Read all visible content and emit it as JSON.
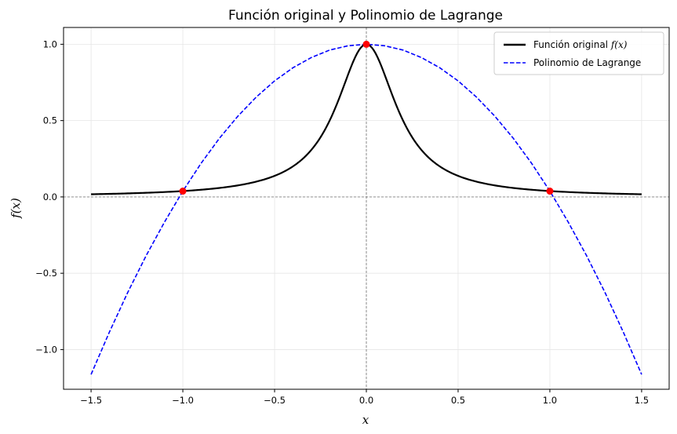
{
  "chart_data": {
    "type": "line",
    "title": "Función original y Polinomio de Lagrange",
    "xlabel": "x",
    "ylabel": "f(x)",
    "xlim": [
      -1.65,
      1.65
    ],
    "ylim": [
      -1.26,
      1.11
    ],
    "xticks": [
      -1.5,
      -1.0,
      -0.5,
      0.0,
      0.5,
      1.0,
      1.5
    ],
    "xtick_labels": [
      "−1.5",
      "−1.0",
      "−0.5",
      "0.0",
      "0.5",
      "1.0",
      "1.5"
    ],
    "yticks": [
      -1.0,
      -0.5,
      0.0,
      0.5,
      1.0
    ],
    "ytick_labels": [
      "−1.0",
      "−0.5",
      "0.0",
      "0.5",
      "1.0"
    ],
    "grid": true,
    "reference_lines": {
      "x": 0,
      "y": 0
    },
    "legend_position": "top-right",
    "series": [
      {
        "name": "Función original f(x)",
        "legend_prefix": "Función original ",
        "legend_math": "f(x)",
        "color": "#000000",
        "style": "solid",
        "x": [
          -1.5,
          -1.4,
          -1.3,
          -1.2,
          -1.1,
          -1.0,
          -0.9,
          -0.8,
          -0.7,
          -0.6,
          -0.5,
          -0.45,
          -0.4,
          -0.35,
          -0.3,
          -0.25,
          -0.2,
          -0.15,
          -0.1,
          -0.05,
          0.0,
          0.05,
          0.1,
          0.15,
          0.2,
          0.25,
          0.3,
          0.35,
          0.4,
          0.45,
          0.5,
          0.6,
          0.7,
          0.8,
          0.9,
          1.0,
          1.1,
          1.2,
          1.3,
          1.4,
          1.5
        ],
        "y": [
          0.017,
          0.02,
          0.023,
          0.027,
          0.032,
          0.038,
          0.047,
          0.059,
          0.075,
          0.1,
          0.138,
          0.165,
          0.2,
          0.246,
          0.308,
          0.39,
          0.5,
          0.64,
          0.8,
          0.941,
          1.0,
          0.941,
          0.8,
          0.64,
          0.5,
          0.39,
          0.308,
          0.246,
          0.2,
          0.165,
          0.138,
          0.1,
          0.075,
          0.059,
          0.047,
          0.038,
          0.032,
          0.027,
          0.023,
          0.02,
          0.017
        ]
      },
      {
        "name": "Polinomio de Lagrange",
        "color": "#0000ff",
        "style": "dashed",
        "x": [
          -1.5,
          -1.4,
          -1.3,
          -1.2,
          -1.1,
          -1.0,
          -0.9,
          -0.8,
          -0.7,
          -0.6,
          -0.5,
          -0.4,
          -0.3,
          -0.2,
          -0.1,
          0.0,
          0.1,
          0.2,
          0.3,
          0.4,
          0.5,
          0.6,
          0.7,
          0.8,
          0.9,
          1.0,
          1.1,
          1.2,
          1.3,
          1.4,
          1.5
        ],
        "y": [
          -1.163,
          -0.885,
          -0.625,
          -0.385,
          -0.165,
          0.038,
          0.221,
          0.385,
          0.529,
          0.654,
          0.76,
          0.846,
          0.913,
          0.962,
          0.99,
          1.0,
          0.99,
          0.962,
          0.913,
          0.846,
          0.76,
          0.654,
          0.529,
          0.385,
          0.221,
          0.038,
          -0.165,
          -0.385,
          -0.625,
          -0.885,
          -1.163
        ]
      }
    ],
    "points": {
      "color": "#ff0000",
      "x": [
        -1.0,
        0.0,
        1.0
      ],
      "y": [
        0.038,
        1.0,
        0.038
      ]
    }
  }
}
